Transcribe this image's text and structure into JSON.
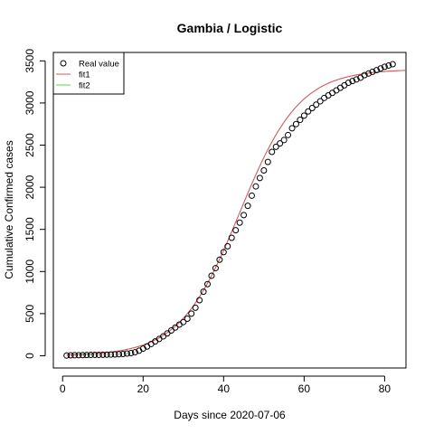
{
  "chart_data": {
    "type": "scatter",
    "title": "Gambia / Logistic",
    "xlabel": "Days since 2020-07-06",
    "ylabel": "Cumulative Confirmed cases",
    "xlim": [
      -2.3,
      85.3
    ],
    "ylim": [
      -145,
      3600
    ],
    "xticks": [
      0,
      20,
      40,
      60,
      80
    ],
    "yticks": [
      0,
      500,
      1000,
      1500,
      2000,
      2500,
      3000,
      3500
    ],
    "grid": false,
    "legend": {
      "position": "top-left",
      "entries": [
        {
          "label": "Real value",
          "marker": "open-circle",
          "color": "#000000"
        },
        {
          "label": "fit1",
          "marker": "line",
          "color": "#DF536B"
        },
        {
          "label": "fit2",
          "marker": "line",
          "color": "#61D04F"
        }
      ]
    },
    "series": [
      {
        "name": "Real value",
        "style": "points",
        "color": "#000000",
        "x": [
          1,
          2,
          3,
          4,
          5,
          6,
          7,
          8,
          9,
          10,
          11,
          12,
          13,
          14,
          15,
          16,
          17,
          18,
          19,
          20,
          21,
          22,
          23,
          24,
          25,
          26,
          27,
          28,
          29,
          30,
          31,
          32,
          33,
          34,
          35,
          36,
          37,
          38,
          39,
          40,
          41,
          42,
          43,
          44,
          45,
          46,
          47,
          48,
          49,
          50,
          51,
          52,
          53,
          54,
          55,
          56,
          57,
          58,
          59,
          60,
          61,
          62,
          63,
          64,
          65,
          66,
          67,
          68,
          69,
          70,
          71,
          72,
          73,
          74,
          75,
          76,
          77,
          78,
          79,
          80,
          81,
          82
        ],
        "y": [
          3,
          5,
          6,
          7,
          8,
          9,
          10,
          11,
          11,
          12,
          13,
          14,
          16,
          18,
          21,
          26,
          32,
          42,
          60,
          85,
          110,
          140,
          170,
          200,
          230,
          265,
          300,
          335,
          370,
          400,
          440,
          500,
          570,
          660,
          760,
          850,
          950,
          1040,
          1140,
          1230,
          1300,
          1400,
          1490,
          1580,
          1670,
          1780,
          1900,
          2010,
          2110,
          2200,
          2300,
          2420,
          2480,
          2520,
          2560,
          2620,
          2700,
          2750,
          2800,
          2850,
          2900,
          2940,
          2980,
          3020,
          3060,
          3090,
          3120,
          3150,
          3180,
          3210,
          3240,
          3260,
          3280,
          3300,
          3330,
          3350,
          3370,
          3390,
          3410,
          3430,
          3445,
          3460
        ]
      },
      {
        "name": "fit1",
        "style": "line",
        "color": "#DF536B",
        "model": "logistic",
        "K": 3400,
        "r": 0.135,
        "x0": 44,
        "x_range": [
          1,
          85.3
        ]
      },
      {
        "name": "fit2",
        "style": "line",
        "color": "#61D04F",
        "model": "logistic",
        "K": 3400,
        "r": 0.135,
        "x0": 44,
        "x_range": [
          1,
          85.3
        ],
        "hidden_under": "fit1"
      }
    ]
  }
}
